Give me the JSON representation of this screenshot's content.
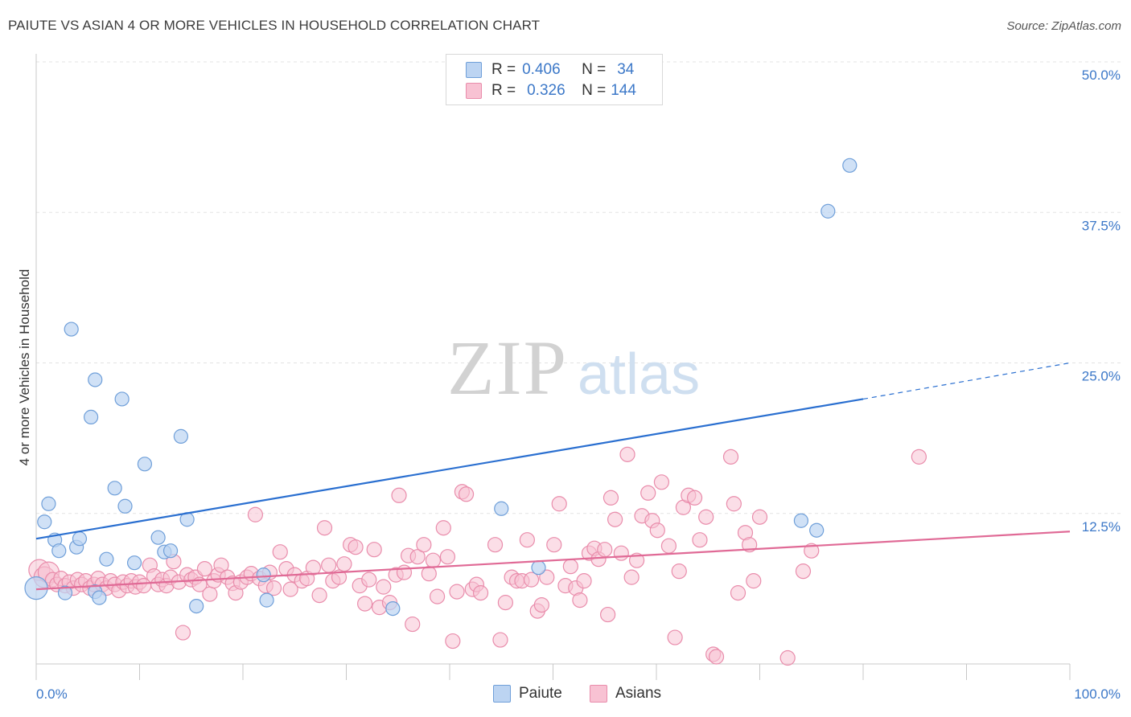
{
  "title": "PAIUTE VS ASIAN 4 OR MORE VEHICLES IN HOUSEHOLD CORRELATION CHART",
  "source": "Source: ZipAtlas.com",
  "watermark": {
    "zip": "ZIP",
    "atlas": "atlas"
  },
  "legend": {
    "rows": [
      {
        "r_label": "R =",
        "r_value": "0.406",
        "n_label": "N =",
        "n_value": "34"
      },
      {
        "r_label": "R =",
        "r_value": "0.326",
        "n_label": "N =",
        "n_value": "144"
      }
    ]
  },
  "colors": {
    "paiute_fill": "#bcd4f2",
    "paiute_stroke": "#6f9fd9",
    "paiute_line": "#2a6fd0",
    "asians_fill": "#f8c2d3",
    "asians_stroke": "#e98cab",
    "asians_line": "#e06a96",
    "grid": "#e3e3e3",
    "axis_label": "#3c78c8"
  },
  "chart_data": {
    "type": "scatter",
    "title": "PAIUTE VS ASIAN 4 OR MORE VEHICLES IN HOUSEHOLD CORRELATION CHART",
    "xlabel": "",
    "ylabel": "4 or more Vehicles in Household",
    "xlim": [
      0,
      100
    ],
    "ylim": [
      0,
      50
    ],
    "x_tick_labels": [
      "0.0%",
      "100.0%"
    ],
    "y_ticks": [
      12.5,
      25.0,
      37.5,
      50.0
    ],
    "y_tick_labels": [
      "12.5%",
      "25.0%",
      "37.5%",
      "50.0%"
    ],
    "series": [
      {
        "name": "Paiute",
        "r": 0.406,
        "n": 34,
        "trend": {
          "x0": 0,
          "y0": 10.4,
          "x1": 80,
          "y1": 22.0,
          "dash_to_x": 100,
          "dash_to_y": 25.0
        },
        "points": [
          [
            0,
            6.3
          ],
          [
            0.8,
            11.8
          ],
          [
            1.2,
            13.3
          ],
          [
            1.8,
            10.3
          ],
          [
            2.2,
            9.4
          ],
          [
            2.8,
            5.9
          ],
          [
            3.4,
            27.8
          ],
          [
            3.9,
            9.7
          ],
          [
            4.2,
            10.4
          ],
          [
            5.7,
            6.0
          ],
          [
            5.3,
            20.5
          ],
          [
            5.7,
            23.6
          ],
          [
            6.1,
            5.5
          ],
          [
            6.8,
            8.7
          ],
          [
            7.6,
            14.6
          ],
          [
            8.3,
            22.0
          ],
          [
            8.6,
            13.1
          ],
          [
            9.5,
            8.4
          ],
          [
            10.5,
            16.6
          ],
          [
            11.8,
            10.5
          ],
          [
            12.4,
            9.3
          ],
          [
            13.0,
            9.4
          ],
          [
            14.0,
            18.9
          ],
          [
            14.6,
            12.0
          ],
          [
            15.5,
            4.8
          ],
          [
            22.3,
            5.3
          ],
          [
            22.0,
            7.4
          ],
          [
            34.5,
            4.6
          ],
          [
            45.0,
            12.9
          ],
          [
            48.6,
            8.0
          ],
          [
            74.0,
            11.9
          ],
          [
            75.5,
            11.1
          ],
          [
            76.6,
            37.6
          ],
          [
            78.7,
            41.4
          ]
        ]
      },
      {
        "name": "Asians",
        "r": 0.326,
        "n": 144,
        "trend": {
          "x0": 0,
          "y0": 6.2,
          "x1": 100,
          "y1": 11.0
        },
        "points": [
          [
            0.3,
            7.8
          ],
          [
            0.8,
            7.2
          ],
          [
            1.2,
            7.6
          ],
          [
            1.6,
            7.0
          ],
          [
            2.0,
            6.6
          ],
          [
            2.4,
            7.1
          ],
          [
            2.8,
            6.5
          ],
          [
            3.2,
            6.8
          ],
          [
            3.6,
            6.3
          ],
          [
            4.0,
            7.0
          ],
          [
            4.4,
            6.6
          ],
          [
            4.8,
            6.9
          ],
          [
            5.2,
            6.3
          ],
          [
            5.6,
            6.6
          ],
          [
            6.0,
            7.1
          ],
          [
            6.4,
            6.6
          ],
          [
            6.8,
            6.3
          ],
          [
            7.2,
            6.9
          ],
          [
            7.6,
            6.6
          ],
          [
            8.0,
            6.1
          ],
          [
            8.4,
            6.8
          ],
          [
            8.8,
            6.5
          ],
          [
            9.2,
            6.9
          ],
          [
            9.6,
            6.4
          ],
          [
            10.0,
            6.8
          ],
          [
            10.4,
            6.5
          ],
          [
            11.0,
            8.2
          ],
          [
            11.4,
            7.3
          ],
          [
            11.8,
            6.6
          ],
          [
            12.2,
            7.0
          ],
          [
            12.6,
            6.5
          ],
          [
            13.0,
            7.2
          ],
          [
            13.3,
            8.5
          ],
          [
            13.8,
            6.8
          ],
          [
            14.2,
            2.6
          ],
          [
            14.6,
            7.4
          ],
          [
            15.0,
            7.0
          ],
          [
            15.4,
            7.2
          ],
          [
            15.8,
            6.6
          ],
          [
            16.3,
            7.9
          ],
          [
            16.8,
            5.8
          ],
          [
            17.2,
            6.9
          ],
          [
            17.6,
            7.4
          ],
          [
            17.9,
            8.2
          ],
          [
            18.5,
            7.2
          ],
          [
            19.0,
            6.7
          ],
          [
            19.3,
            5.9
          ],
          [
            19.8,
            6.8
          ],
          [
            20.4,
            7.2
          ],
          [
            20.8,
            7.5
          ],
          [
            21.2,
            12.4
          ],
          [
            21.6,
            7.1
          ],
          [
            22.2,
            6.5
          ],
          [
            22.6,
            7.6
          ],
          [
            23.0,
            6.3
          ],
          [
            23.6,
            9.3
          ],
          [
            24.2,
            7.9
          ],
          [
            24.6,
            6.2
          ],
          [
            25.0,
            7.4
          ],
          [
            25.7,
            6.9
          ],
          [
            26.2,
            7.1
          ],
          [
            26.8,
            8.0
          ],
          [
            27.4,
            5.7
          ],
          [
            27.9,
            11.3
          ],
          [
            28.3,
            8.2
          ],
          [
            28.7,
            6.9
          ],
          [
            29.3,
            7.2
          ],
          [
            29.8,
            8.3
          ],
          [
            30.4,
            9.9
          ],
          [
            30.9,
            9.7
          ],
          [
            31.3,
            6.5
          ],
          [
            31.8,
            5.0
          ],
          [
            32.2,
            7.0
          ],
          [
            32.7,
            9.5
          ],
          [
            33.2,
            4.7
          ],
          [
            33.6,
            6.4
          ],
          [
            34.2,
            5.1
          ],
          [
            34.8,
            7.4
          ],
          [
            35.1,
            14.0
          ],
          [
            35.6,
            7.6
          ],
          [
            36.0,
            9.0
          ],
          [
            36.4,
            3.3
          ],
          [
            36.9,
            8.9
          ],
          [
            37.5,
            9.9
          ],
          [
            38.0,
            7.5
          ],
          [
            38.4,
            8.6
          ],
          [
            38.8,
            5.6
          ],
          [
            39.4,
            11.3
          ],
          [
            39.8,
            8.9
          ],
          [
            40.3,
            1.9
          ],
          [
            40.7,
            6.0
          ],
          [
            41.2,
            14.3
          ],
          [
            41.6,
            14.1
          ],
          [
            42.2,
            6.2
          ],
          [
            42.6,
            6.6
          ],
          [
            43.0,
            5.9
          ],
          [
            44.4,
            9.9
          ],
          [
            44.9,
            2.0
          ],
          [
            45.4,
            5.1
          ],
          [
            46.0,
            7.2
          ],
          [
            46.5,
            6.9
          ],
          [
            47.0,
            6.9
          ],
          [
            47.5,
            10.3
          ],
          [
            47.9,
            7.0
          ],
          [
            48.5,
            4.4
          ],
          [
            48.9,
            4.9
          ],
          [
            49.4,
            7.2
          ],
          [
            50.1,
            9.9
          ],
          [
            50.6,
            13.3
          ],
          [
            51.2,
            6.5
          ],
          [
            51.7,
            8.1
          ],
          [
            52.2,
            6.3
          ],
          [
            52.6,
            5.3
          ],
          [
            53.0,
            6.9
          ],
          [
            53.5,
            9.2
          ],
          [
            54.0,
            9.6
          ],
          [
            54.4,
            8.7
          ],
          [
            55.0,
            9.5
          ],
          [
            55.3,
            4.1
          ],
          [
            55.6,
            13.8
          ],
          [
            56.0,
            12.0
          ],
          [
            56.6,
            9.2
          ],
          [
            57.2,
            17.4
          ],
          [
            57.6,
            7.2
          ],
          [
            58.1,
            8.6
          ],
          [
            58.6,
            12.3
          ],
          [
            59.2,
            14.2
          ],
          [
            59.6,
            11.9
          ],
          [
            60.1,
            11.1
          ],
          [
            60.5,
            15.1
          ],
          [
            61.2,
            9.8
          ],
          [
            61.8,
            2.2
          ],
          [
            62.2,
            7.7
          ],
          [
            62.6,
            13.0
          ],
          [
            63.1,
            14.0
          ],
          [
            63.7,
            13.8
          ],
          [
            64.2,
            10.3
          ],
          [
            64.8,
            12.2
          ],
          [
            65.5,
            0.8
          ],
          [
            65.8,
            0.6
          ],
          [
            67.5,
            13.3
          ],
          [
            67.9,
            5.9
          ],
          [
            68.6,
            10.9
          ],
          [
            69.0,
            9.9
          ],
          [
            69.4,
            6.9
          ],
          [
            70.0,
            12.2
          ],
          [
            72.7,
            0.5
          ],
          [
            74.2,
            7.7
          ],
          [
            75.0,
            9.4
          ],
          [
            85.4,
            17.2
          ],
          [
            67.2,
            17.2
          ]
        ]
      }
    ]
  },
  "bottom_legend": {
    "paiute": "Paiute",
    "asians": "Asians"
  }
}
